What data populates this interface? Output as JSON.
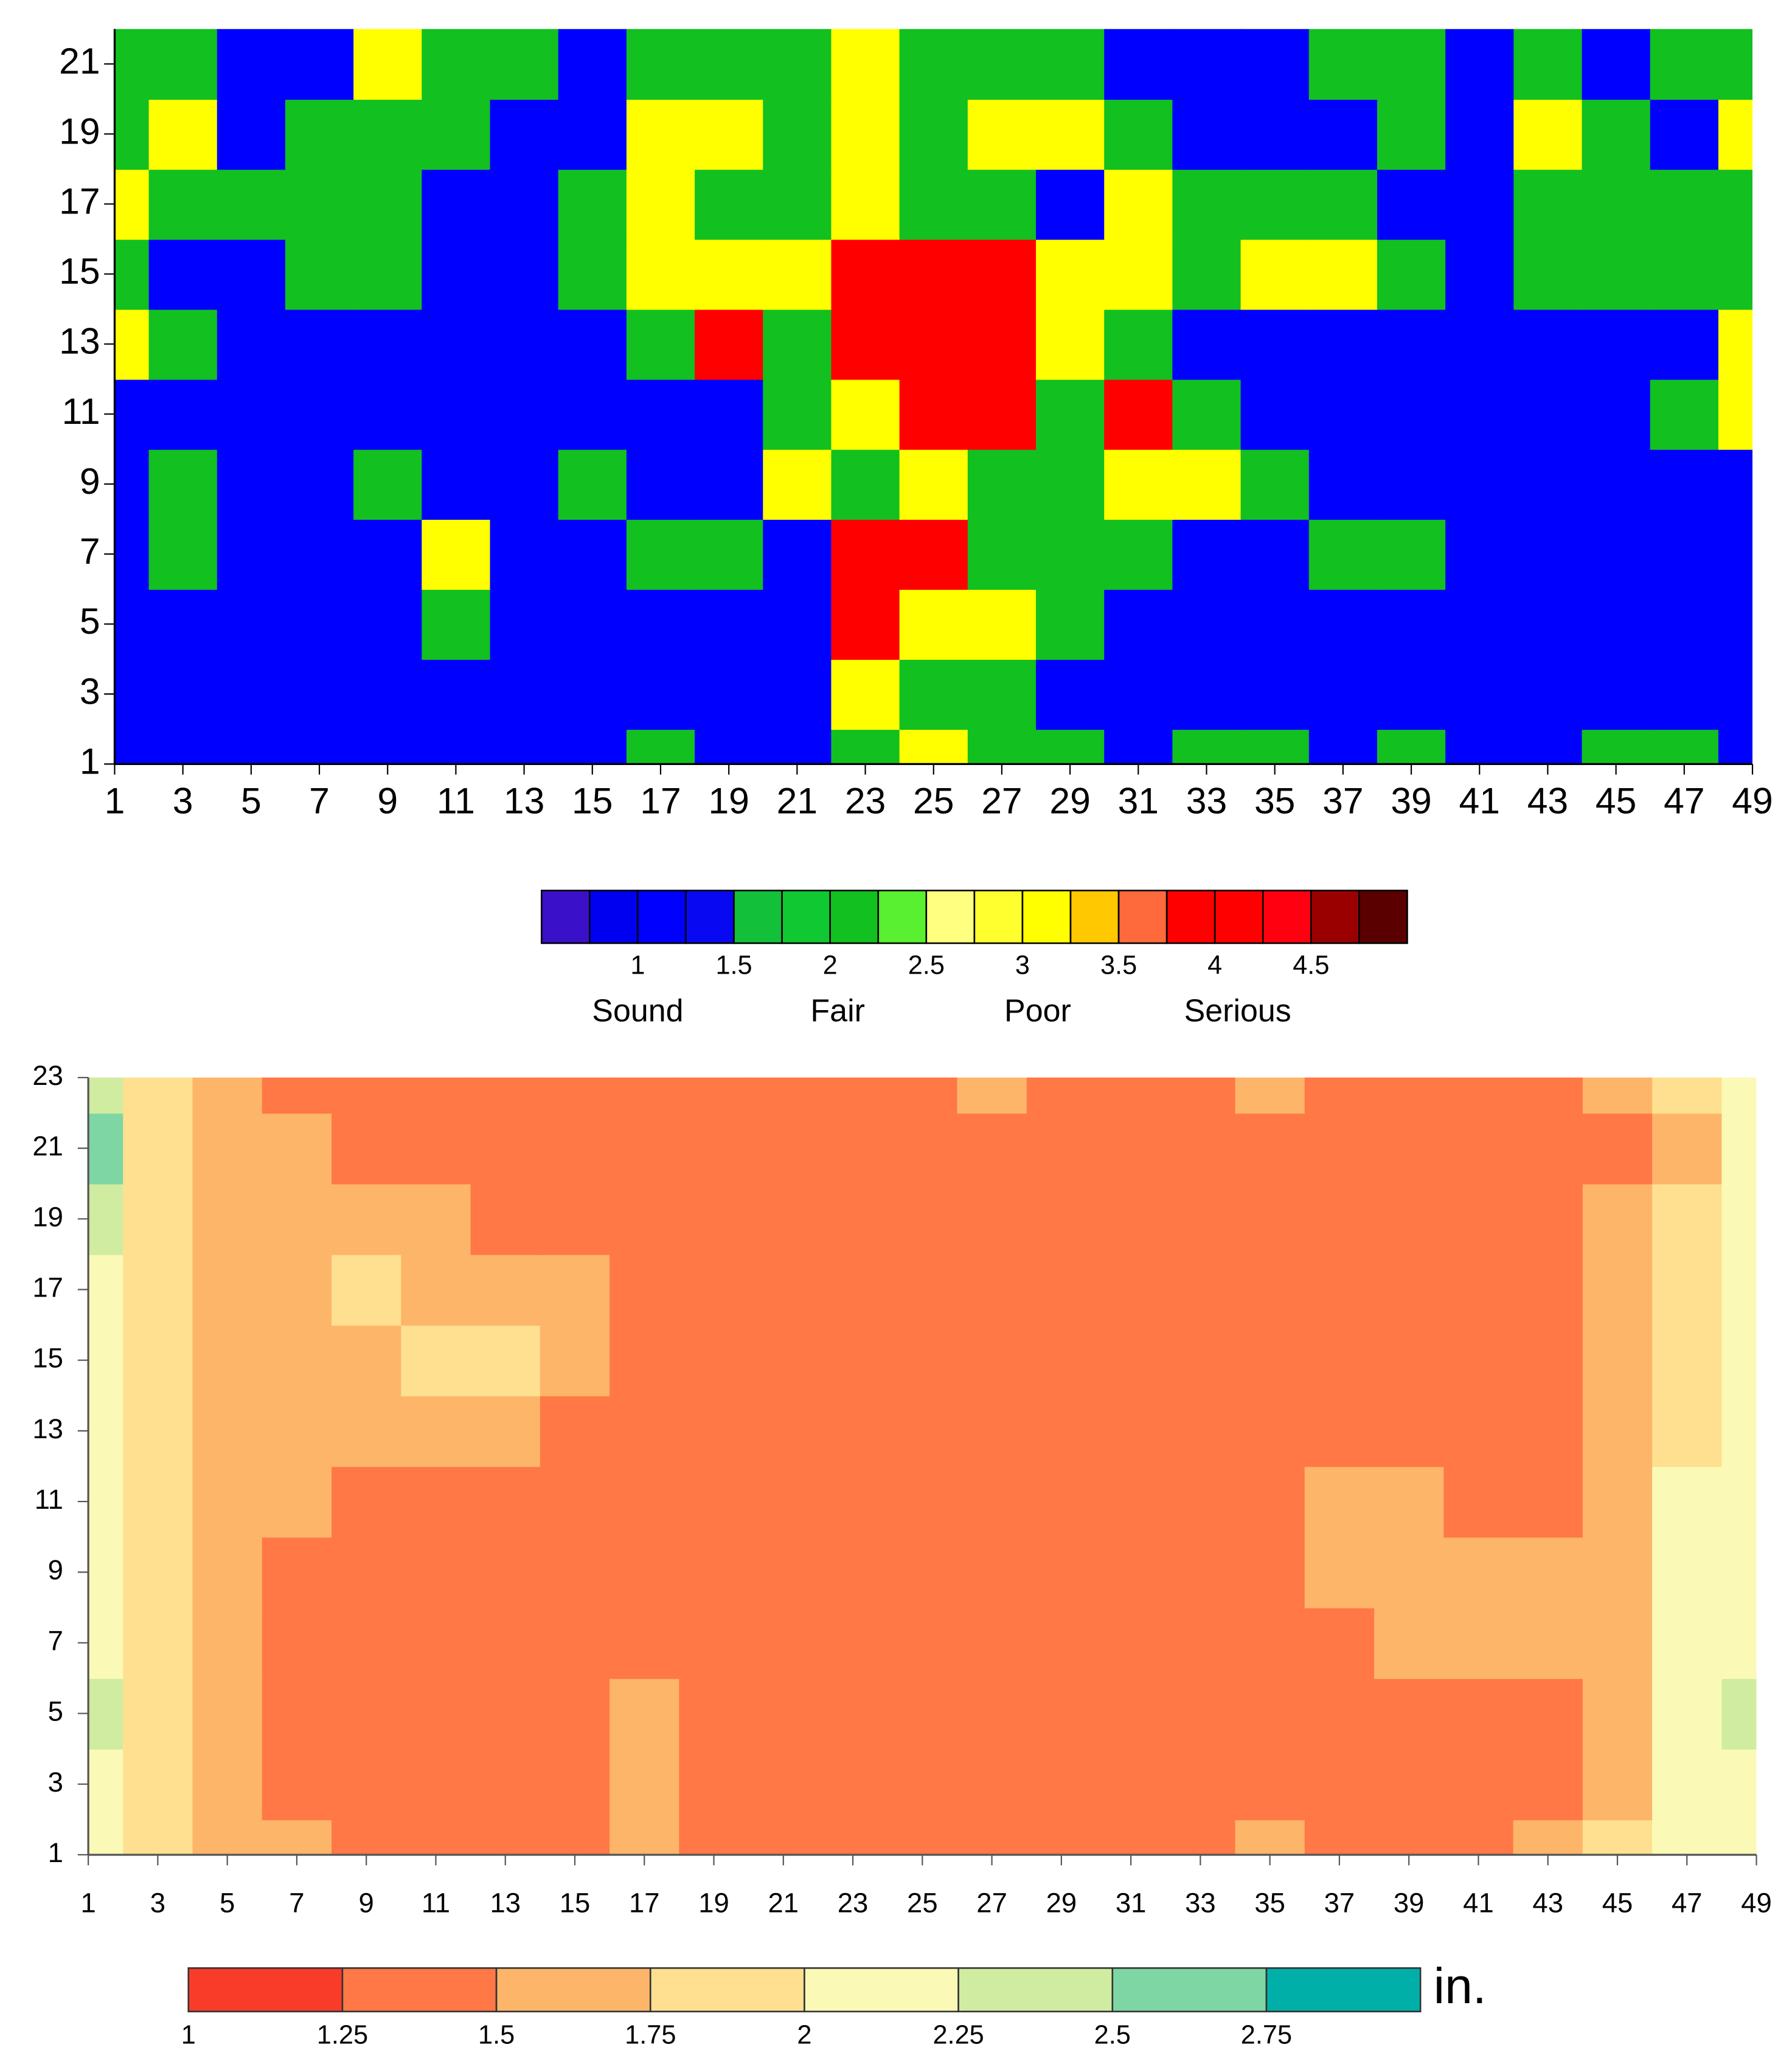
{
  "chart_data": [
    {
      "type": "contour",
      "x": [
        1,
        3,
        5,
        7,
        9,
        11,
        13,
        15,
        17,
        19,
        21,
        23,
        25,
        27,
        29,
        31,
        33,
        35,
        37,
        39,
        41,
        43,
        45,
        47,
        49
      ],
      "y": [
        1,
        3,
        5,
        7,
        9,
        11,
        13,
        15,
        17,
        19,
        21
      ],
      "z": [
        [
          1,
          1,
          1,
          1,
          1,
          1,
          1,
          1,
          2,
          1,
          1,
          2,
          3,
          2,
          2,
          1,
          2,
          2,
          1,
          2,
          1,
          1,
          2,
          2,
          1
        ],
        [
          1,
          1,
          1,
          1,
          1,
          1,
          1,
          1,
          1,
          1,
          1,
          3,
          2,
          2,
          1,
          1,
          1,
          1,
          1,
          1,
          1,
          1,
          1,
          1,
          1
        ],
        [
          1,
          1,
          1,
          1,
          1,
          2,
          1,
          1,
          1,
          1,
          1,
          4,
          3,
          3,
          2,
          1,
          1,
          1,
          1,
          1,
          1,
          1,
          1,
          1,
          1
        ],
        [
          1,
          2,
          1,
          1,
          1,
          3,
          1,
          1,
          2,
          2,
          1,
          4,
          4,
          2,
          2,
          2,
          1,
          1,
          2,
          2,
          1,
          1,
          1,
          1,
          1
        ],
        [
          1,
          2,
          1,
          1,
          2,
          1,
          1,
          2,
          1,
          1,
          3,
          2,
          3,
          2,
          2,
          3,
          3,
          2,
          1,
          1,
          1,
          1,
          1,
          1,
          1
        ],
        [
          1,
          1,
          1,
          1,
          1,
          1,
          1,
          1,
          1,
          1,
          2,
          3,
          4,
          4,
          2,
          4,
          2,
          1,
          1,
          1,
          1,
          1,
          1,
          2,
          3
        ],
        [
          3,
          2,
          1,
          1,
          1,
          1,
          1,
          1,
          2,
          4,
          2,
          4,
          4,
          4,
          3,
          2,
          1,
          1,
          1,
          1,
          1,
          1,
          1,
          1,
          3
        ],
        [
          2,
          1,
          1,
          2,
          2,
          1,
          1,
          2,
          3,
          3,
          3,
          4,
          4,
          4,
          3,
          3,
          2,
          3,
          3,
          2,
          1,
          2,
          2,
          2,
          2
        ],
        [
          3,
          2,
          2,
          2,
          2,
          1,
          1,
          2,
          3,
          2,
          2,
          3,
          2,
          2,
          1,
          3,
          2,
          2,
          2,
          1,
          1,
          2,
          2,
          2,
          2
        ],
        [
          2,
          3,
          1,
          2,
          2,
          2,
          1,
          1,
          3,
          3,
          2,
          3,
          2,
          3,
          3,
          2,
          1,
          1,
          1,
          2,
          1,
          3,
          2,
          1,
          3
        ],
        [
          2,
          2,
          1,
          1,
          3,
          2,
          2,
          1,
          2,
          2,
          2,
          3,
          2,
          2,
          2,
          1,
          1,
          1,
          2,
          2,
          1,
          2,
          1,
          2,
          2
        ]
      ],
      "xlim": [
        1,
        49
      ],
      "ylim": [
        1,
        22
      ],
      "xticks": [
        1,
        3,
        5,
        7,
        9,
        11,
        13,
        15,
        17,
        19,
        21,
        23,
        25,
        27,
        29,
        31,
        33,
        35,
        37,
        39,
        41,
        43,
        45,
        47,
        49
      ],
      "yticks": [
        1,
        3,
        5,
        7,
        9,
        11,
        13,
        15,
        17,
        19,
        21
      ],
      "colorbar": {
        "levels": [
          0.5,
          0.75,
          1,
          1.25,
          1.5,
          1.75,
          2,
          2.25,
          2.5,
          2.75,
          3,
          3.25,
          3.5,
          3.75,
          4,
          4.25,
          4.5,
          4.75,
          5
        ],
        "colors": [
          "#3a10c8",
          "#0000f0",
          "#0000ff",
          "#0808f2",
          "#12c03a",
          "#10c832",
          "#12c020",
          "#58f030",
          "#ffff80",
          "#ffff30",
          "#ffff00",
          "#ffc800",
          "#ff6a3c",
          "#ff0000",
          "#ff0000",
          "#ff0010",
          "#9a0000",
          "#5a0000"
        ],
        "ticks": [
          1,
          1.5,
          2,
          2.5,
          3,
          3.5,
          4,
          4.5
        ],
        "categories": [
          "Sound",
          "Fair",
          "Poor",
          "Serious"
        ]
      }
    },
    {
      "type": "contour",
      "x": [
        1,
        3,
        5,
        7,
        9,
        11,
        13,
        15,
        17,
        19,
        21,
        23,
        25,
        27,
        29,
        31,
        33,
        35,
        37,
        39,
        41,
        43,
        45,
        47,
        49
      ],
      "y": [
        1,
        3,
        5,
        7,
        9,
        11,
        13,
        15,
        17,
        19,
        21,
        23
      ],
      "z": [
        [
          2.1,
          1.9,
          1.6,
          1.6,
          1.3,
          1.3,
          1.3,
          1.3,
          1.6,
          1.3,
          1.3,
          1.3,
          1.3,
          1.3,
          1.3,
          1.3,
          1.3,
          1.6,
          1.3,
          1.3,
          1.3,
          1.6,
          1.9,
          2.1,
          2.2
        ],
        [
          2.1,
          1.9,
          1.6,
          1.3,
          1.3,
          1.3,
          1.3,
          1.3,
          1.6,
          1.3,
          1.3,
          1.3,
          1.3,
          1.3,
          1.3,
          1.3,
          1.3,
          1.3,
          1.3,
          1.3,
          1.3,
          1.3,
          1.6,
          2.0,
          2.2
        ],
        [
          2.3,
          1.9,
          1.6,
          1.3,
          1.3,
          1.3,
          1.3,
          1.3,
          1.6,
          1.3,
          1.3,
          1.3,
          1.3,
          1.3,
          1.3,
          1.3,
          1.3,
          1.3,
          1.3,
          1.3,
          1.3,
          1.3,
          1.6,
          2.0,
          2.4
        ],
        [
          2.2,
          1.9,
          1.6,
          1.3,
          1.3,
          1.3,
          1.3,
          1.3,
          1.3,
          1.3,
          1.3,
          1.3,
          1.3,
          1.3,
          1.3,
          1.3,
          1.3,
          1.3,
          1.3,
          1.6,
          1.6,
          1.6,
          1.6,
          2.0,
          2.2
        ],
        [
          2.2,
          1.9,
          1.6,
          1.3,
          1.3,
          1.3,
          1.3,
          1.3,
          1.3,
          1.3,
          1.3,
          1.3,
          1.3,
          1.3,
          1.3,
          1.3,
          1.3,
          1.3,
          1.6,
          1.6,
          1.6,
          1.6,
          1.6,
          2.0,
          2.2
        ],
        [
          2.2,
          1.9,
          1.6,
          1.6,
          1.3,
          1.3,
          1.3,
          1.3,
          1.3,
          1.3,
          1.3,
          1.3,
          1.3,
          1.3,
          1.3,
          1.3,
          1.3,
          1.3,
          1.6,
          1.6,
          1.3,
          1.3,
          1.6,
          2.0,
          2.2
        ],
        [
          2.2,
          1.9,
          1.6,
          1.6,
          1.6,
          1.6,
          1.6,
          1.3,
          1.3,
          1.3,
          1.3,
          1.3,
          1.3,
          1.3,
          1.3,
          1.3,
          1.3,
          1.3,
          1.3,
          1.3,
          1.3,
          1.3,
          1.6,
          1.9,
          2.1
        ],
        [
          2.1,
          1.9,
          1.6,
          1.6,
          1.6,
          1.8,
          1.8,
          1.6,
          1.3,
          1.3,
          1.3,
          1.3,
          1.3,
          1.3,
          1.3,
          1.3,
          1.3,
          1.3,
          1.3,
          1.3,
          1.3,
          1.3,
          1.6,
          1.9,
          2.1
        ],
        [
          2.2,
          1.9,
          1.6,
          1.6,
          1.8,
          1.6,
          1.6,
          1.6,
          1.3,
          1.3,
          1.3,
          1.3,
          1.3,
          1.3,
          1.3,
          1.3,
          1.3,
          1.3,
          1.3,
          1.3,
          1.3,
          1.3,
          1.6,
          1.9,
          2.1
        ],
        [
          2.3,
          1.9,
          1.6,
          1.6,
          1.6,
          1.6,
          1.3,
          1.3,
          1.3,
          1.3,
          1.3,
          1.3,
          1.3,
          1.3,
          1.3,
          1.3,
          1.3,
          1.3,
          1.3,
          1.3,
          1.3,
          1.3,
          1.6,
          1.9,
          2.1
        ],
        [
          2.5,
          1.9,
          1.6,
          1.6,
          1.3,
          1.3,
          1.3,
          1.3,
          1.3,
          1.3,
          1.3,
          1.3,
          1.3,
          1.3,
          1.3,
          1.3,
          1.3,
          1.3,
          1.3,
          1.3,
          1.3,
          1.3,
          1.3,
          1.6,
          2.0
        ],
        [
          2.4,
          1.9,
          1.6,
          1.3,
          1.3,
          1.3,
          1.3,
          1.3,
          1.3,
          1.3,
          1.3,
          1.3,
          1.3,
          1.6,
          1.3,
          1.3,
          1.3,
          1.6,
          1.3,
          1.3,
          1.3,
          1.3,
          1.6,
          1.8,
          2.1
        ]
      ],
      "xlim": [
        1,
        49
      ],
      "ylim": [
        1,
        23
      ],
      "xticks": [
        1,
        3,
        5,
        7,
        9,
        11,
        13,
        15,
        17,
        19,
        21,
        23,
        25,
        27,
        29,
        31,
        33,
        35,
        37,
        39,
        41,
        43,
        45,
        47,
        49
      ],
      "yticks": [
        1,
        3,
        5,
        7,
        9,
        11,
        13,
        15,
        17,
        19,
        21,
        23
      ],
      "colorbar": {
        "levels": [
          1,
          1.25,
          1.5,
          1.75,
          2,
          2.25,
          2.5,
          2.75,
          3
        ],
        "colors": [
          "#f93c2a",
          "#ff7846",
          "#fdb56a",
          "#fee090",
          "#fafab6",
          "#d0eca0",
          "#7ed6a4",
          "#00b0a8"
        ],
        "ticks": [
          1,
          1.25,
          1.5,
          1.75,
          2,
          2.25,
          2.5,
          2.75
        ],
        "unit": "in."
      }
    }
  ]
}
